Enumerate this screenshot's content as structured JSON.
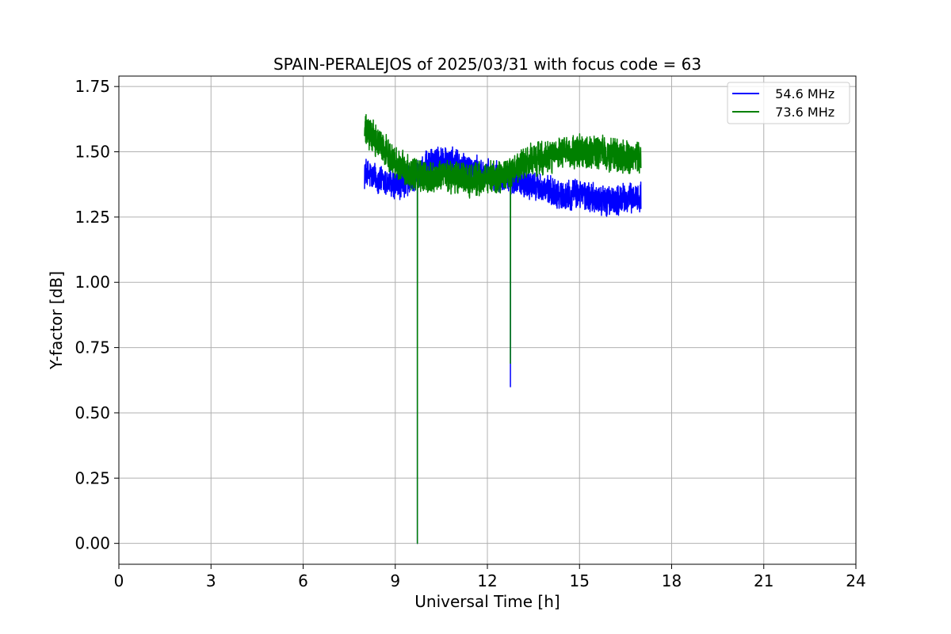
{
  "chart_data": {
    "type": "line",
    "title": "SPAIN-PERALEJOS of 2025/03/31 with focus code = 63",
    "xlabel": "Universal Time [h]",
    "ylabel": "Y-factor [dB]",
    "xlim": [
      0,
      24
    ],
    "ylim": [
      -0.08,
      1.79
    ],
    "xticks": [
      0,
      3,
      6,
      9,
      12,
      15,
      18,
      21,
      24
    ],
    "xtick_labels": [
      "0",
      "3",
      "6",
      "9",
      "12",
      "15",
      "18",
      "21",
      "24"
    ],
    "yticks": [
      0.0,
      0.25,
      0.5,
      0.75,
      1.0,
      1.25,
      1.5,
      1.75
    ],
    "ytick_labels": [
      "0.00",
      "0.25",
      "0.50",
      "0.75",
      "1.00",
      "1.25",
      "1.50",
      "1.75"
    ],
    "grid": true,
    "legend_position": "top-right",
    "time_range": [
      8.0,
      17.0
    ],
    "series": [
      {
        "name": "54.6 MHz",
        "label": "  54.6 MHz",
        "color": "#0000ff",
        "profile_x": [
          8.0,
          8.5,
          9.0,
          9.5,
          10.0,
          10.5,
          11.0,
          11.5,
          12.0,
          12.5,
          13.0,
          13.5,
          14.0,
          14.5,
          15.0,
          15.5,
          16.0,
          16.5,
          17.0
        ],
        "profile_y": [
          1.42,
          1.39,
          1.37,
          1.39,
          1.44,
          1.47,
          1.45,
          1.43,
          1.41,
          1.4,
          1.39,
          1.37,
          1.35,
          1.33,
          1.34,
          1.32,
          1.31,
          1.32,
          1.33
        ],
        "noise_amplitude": 0.05,
        "dips": [
          {
            "x": 9.72,
            "y": 0.0
          },
          {
            "x": 12.75,
            "y": 0.6
          }
        ]
      },
      {
        "name": "73.6 MHz",
        "label": "  73.6 MHz",
        "color": "#008000",
        "profile_x": [
          8.0,
          8.5,
          9.0,
          9.5,
          10.0,
          10.5,
          11.0,
          11.5,
          12.0,
          12.5,
          13.0,
          13.5,
          14.0,
          14.5,
          15.0,
          15.5,
          16.0,
          16.5,
          17.0
        ],
        "profile_y": [
          1.58,
          1.53,
          1.46,
          1.42,
          1.4,
          1.41,
          1.4,
          1.39,
          1.4,
          1.4,
          1.44,
          1.47,
          1.48,
          1.49,
          1.5,
          1.5,
          1.49,
          1.48,
          1.47
        ],
        "noise_amplitude": 0.055,
        "dips": [
          {
            "x": 9.72,
            "y": 0.0
          },
          {
            "x": 12.75,
            "y": 0.69
          }
        ]
      }
    ]
  }
}
